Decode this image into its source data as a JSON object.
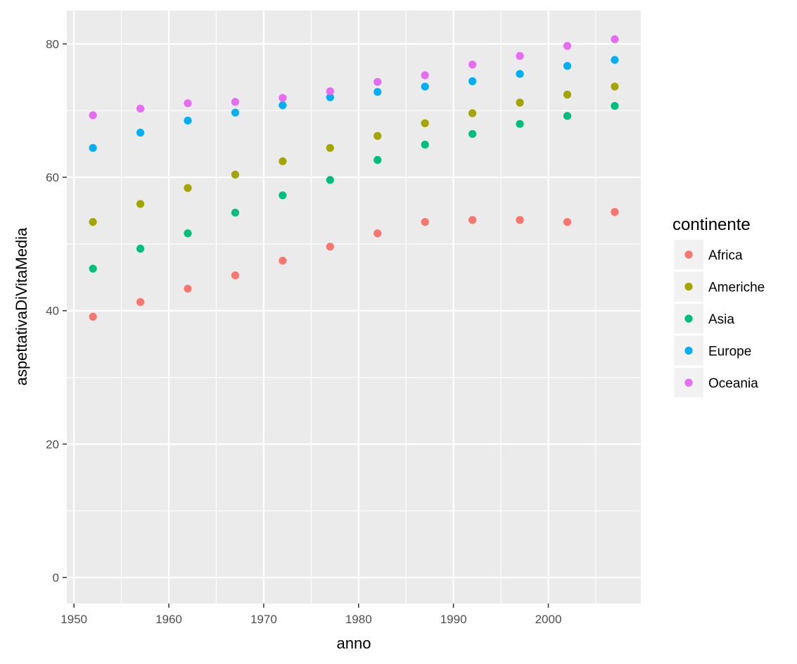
{
  "chart_data": {
    "type": "scatter",
    "xlabel": "anno",
    "ylabel": "aspettativaDiVitaMedia",
    "xlim": [
      1949.25,
      2009.75
    ],
    "ylim": [
      -3.9,
      85
    ],
    "x_ticks": [
      1950,
      1960,
      1970,
      1980,
      1990,
      2000
    ],
    "y_ticks": [
      0,
      20,
      40,
      60,
      80
    ],
    "grid": true,
    "legend": {
      "title": "continente",
      "position": "right"
    },
    "x": [
      1952,
      1957,
      1962,
      1967,
      1972,
      1977,
      1982,
      1987,
      1992,
      1997,
      2002,
      2007
    ],
    "series": [
      {
        "name": "Africa",
        "color": "#F8766D",
        "values": [
          39.1,
          41.3,
          43.3,
          45.3,
          47.5,
          49.6,
          51.6,
          53.3,
          53.6,
          53.6,
          53.3,
          54.8
        ]
      },
      {
        "name": "Americhe",
        "color": "#A3A500",
        "values": [
          53.3,
          56.0,
          58.4,
          60.4,
          62.4,
          64.4,
          66.2,
          68.1,
          69.6,
          71.2,
          72.4,
          73.6
        ]
      },
      {
        "name": "Asia",
        "color": "#00BF7D",
        "values": [
          46.3,
          49.3,
          51.6,
          54.7,
          57.3,
          59.6,
          62.6,
          64.9,
          66.5,
          68.0,
          69.2,
          70.7
        ]
      },
      {
        "name": "Europe",
        "color": "#00B0F6",
        "values": [
          64.4,
          66.7,
          68.5,
          69.7,
          70.8,
          72.0,
          72.8,
          73.6,
          74.4,
          75.5,
          76.7,
          77.6
        ]
      },
      {
        "name": "Oceania",
        "color": "#E76BF3",
        "values": [
          69.3,
          70.3,
          71.1,
          71.3,
          71.9,
          72.9,
          74.3,
          75.3,
          76.9,
          78.2,
          79.7,
          80.7
        ]
      }
    ]
  }
}
